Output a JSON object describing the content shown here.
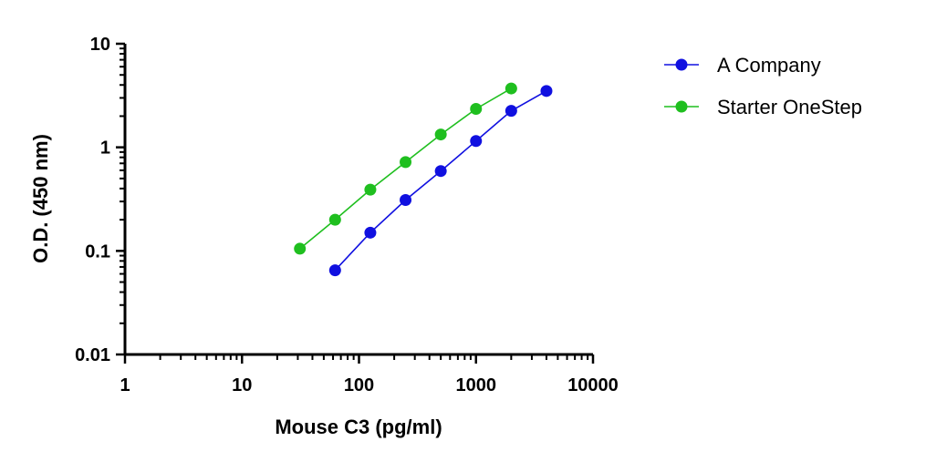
{
  "chart_data": {
    "type": "scatter",
    "xlabel": "Mouse C3 (pg/ml)",
    "ylabel": "O.D. (450 nm)",
    "xscale": "log",
    "yscale": "log",
    "xlim": [
      1,
      10000
    ],
    "ylim": [
      0.01,
      10
    ],
    "xticks": [
      {
        "value": 1,
        "label": "1"
      },
      {
        "value": 10,
        "label": "10"
      },
      {
        "value": 100,
        "label": "100"
      },
      {
        "value": 1000,
        "label": "1000"
      },
      {
        "value": 10000,
        "label": "10000"
      }
    ],
    "yticks": [
      {
        "value": 0.01,
        "label": "0.01"
      },
      {
        "value": 0.1,
        "label": "0.1"
      },
      {
        "value": 1,
        "label": "1"
      },
      {
        "value": 10,
        "label": "10"
      }
    ],
    "grid": false,
    "legend_position": "right",
    "series": [
      {
        "name": "A Company",
        "color": "#1010e0",
        "x": [
          62.5,
          125,
          250,
          500,
          1000,
          2000,
          4000
        ],
        "y": [
          0.065,
          0.15,
          0.31,
          0.59,
          1.15,
          2.25,
          3.5
        ]
      },
      {
        "name": "Starter OneStep",
        "color": "#1fbf1f",
        "x": [
          31.25,
          62.5,
          125,
          250,
          500,
          1000,
          2000
        ],
        "y": [
          0.105,
          0.2,
          0.39,
          0.72,
          1.33,
          2.35,
          3.7
        ]
      }
    ]
  }
}
